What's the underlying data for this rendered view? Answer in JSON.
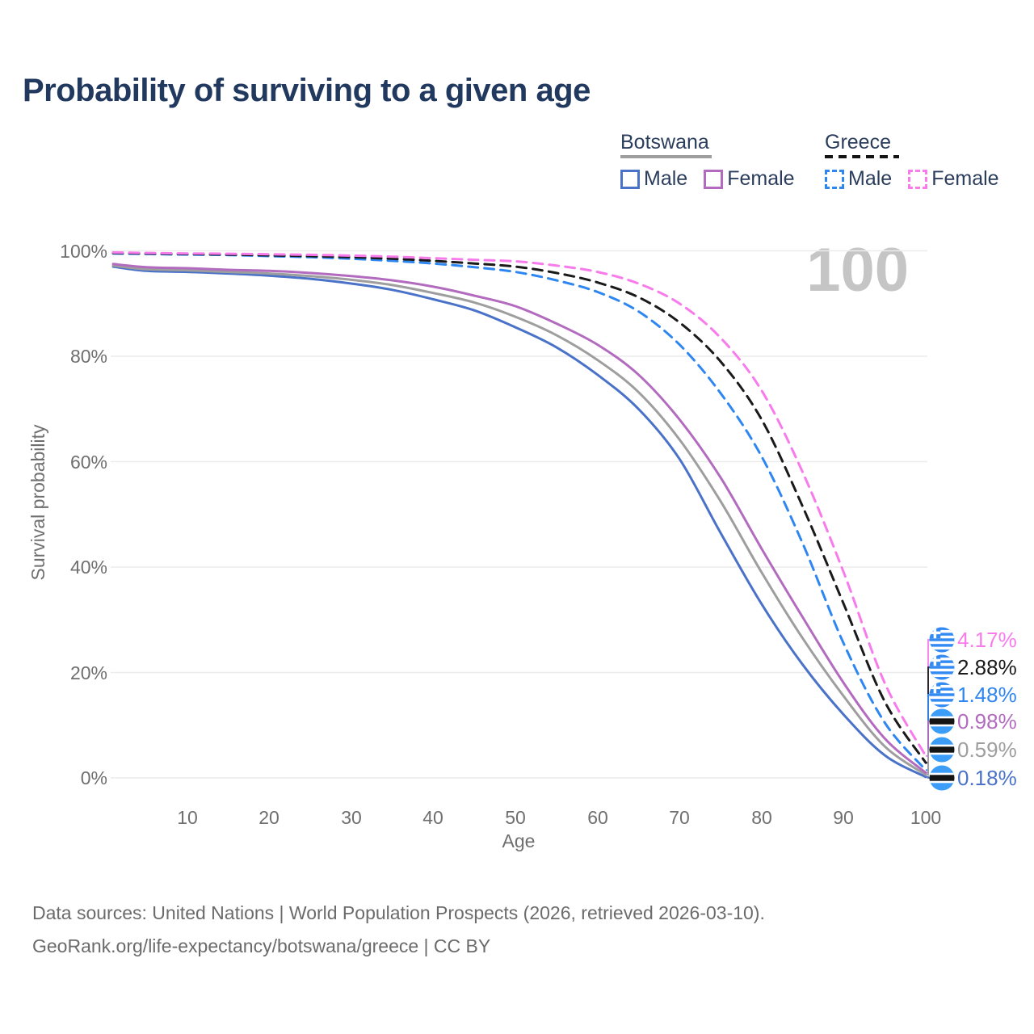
{
  "title": "Probability of surviving to a given age",
  "watermark_age": "100",
  "legend": {
    "groups": [
      {
        "id": "botswana",
        "label": "Botswana",
        "line_style": "solid",
        "line_color": "#9e9e9e",
        "underline_width": 113,
        "items": [
          {
            "id": "male",
            "label": "Male",
            "swatch_color": "#4a72c8",
            "swatch_style": "solid"
          },
          {
            "id": "female",
            "label": "Female",
            "swatch_color": "#b26bbe",
            "swatch_style": "solid"
          }
        ]
      },
      {
        "id": "greece",
        "label": "Greece",
        "line_style": "dashed",
        "line_color": "#141414",
        "underline_width": 92,
        "items": [
          {
            "id": "male",
            "label": "Male",
            "swatch_color": "#2e86f0",
            "swatch_style": "dashed"
          },
          {
            "id": "female",
            "label": "Female",
            "swatch_color": "#f87bec",
            "swatch_style": "dashed"
          }
        ]
      }
    ]
  },
  "chart_data": {
    "type": "line",
    "title": "Probability of surviving to a given age",
    "xlabel": "Age",
    "ylabel": "Survival probability",
    "xlim": [
      1,
      100
    ],
    "ylim": [
      0,
      100
    ],
    "grid": "horizontal-only",
    "legend_position": "top-right",
    "focus_age": 100,
    "x_ticks": [
      10,
      20,
      30,
      40,
      50,
      60,
      70,
      80,
      90,
      100
    ],
    "y_tick_values": [
      0,
      20,
      40,
      60,
      80,
      100
    ],
    "y_tick_labels": [
      "0%",
      "20%",
      "40%",
      "60%",
      "80%",
      "100%"
    ],
    "x": [
      1,
      5,
      10,
      15,
      20,
      25,
      30,
      35,
      40,
      45,
      50,
      55,
      60,
      65,
      70,
      75,
      80,
      85,
      90,
      95,
      100
    ],
    "series": [
      {
        "name": "Greece Female",
        "country": "Greece",
        "sex": "Female",
        "color": "#f87bec",
        "line_style": "dashed",
        "flag": "greece",
        "end_label": "4.17%",
        "end_value": 4.17,
        "values": [
          99.7,
          99.6,
          99.5,
          99.45,
          99.35,
          99.25,
          99.1,
          98.9,
          98.6,
          98.3,
          98.0,
          97.2,
          96.0,
          93.8,
          90.0,
          83.5,
          73.5,
          58.0,
          39.0,
          18.0,
          4.17
        ]
      },
      {
        "name": "Greece All",
        "country": "Greece",
        "sex": "All",
        "color": "#1a1a1a",
        "line_style": "dashed",
        "flag": "greece",
        "end_label": "2.88%",
        "end_value": 2.88,
        "values": [
          99.6,
          99.5,
          99.4,
          99.3,
          99.15,
          99.0,
          98.8,
          98.5,
          98.1,
          97.6,
          97.0,
          95.8,
          94.0,
          91.2,
          86.4,
          79.0,
          68.0,
          51.5,
          33.0,
          14.5,
          2.88
        ]
      },
      {
        "name": "Greece Male",
        "country": "Greece",
        "sex": "Male",
        "color": "#2e86f0",
        "line_style": "dashed",
        "flag": "greece",
        "end_label": "1.48%",
        "end_value": 1.48,
        "values": [
          99.5,
          99.4,
          99.3,
          99.2,
          99.0,
          98.8,
          98.5,
          98.1,
          97.6,
          96.9,
          96.0,
          94.4,
          92.2,
          88.5,
          82.2,
          73.0,
          61.0,
          44.5,
          25.5,
          10.5,
          1.48
        ]
      },
      {
        "name": "Botswana Female",
        "country": "Botswana",
        "sex": "Female",
        "color": "#b26bbe",
        "line_style": "solid",
        "flag": "botswana",
        "end_label": "0.98%",
        "end_value": 0.98,
        "values": [
          97.5,
          96.9,
          96.7,
          96.4,
          96.2,
          95.8,
          95.2,
          94.4,
          93.2,
          91.5,
          89.5,
          86.2,
          82.2,
          76.5,
          68.0,
          57.0,
          43.5,
          30.5,
          18.0,
          7.5,
          0.98
        ]
      },
      {
        "name": "Botswana All",
        "country": "Botswana",
        "sex": "All",
        "color": "#9e9e9e",
        "line_style": "solid",
        "flag": "botswana",
        "end_label": "0.59%",
        "end_value": 0.59,
        "values": [
          97.2,
          96.5,
          96.3,
          96.0,
          95.7,
          95.2,
          94.5,
          93.5,
          92.0,
          90.2,
          87.5,
          84.0,
          79.3,
          73.2,
          64.2,
          52.5,
          39.0,
          26.5,
          15.5,
          6.0,
          0.59
        ]
      },
      {
        "name": "Botswana Male",
        "country": "Botswana",
        "sex": "Male",
        "color": "#4a72c8",
        "line_style": "solid",
        "flag": "botswana",
        "end_label": "0.18%",
        "end_value": 0.18,
        "values": [
          97.0,
          96.2,
          96.0,
          95.7,
          95.3,
          94.7,
          93.8,
          92.6,
          90.8,
          88.7,
          85.5,
          81.7,
          76.5,
          70.0,
          60.5,
          46.5,
          33.0,
          21.5,
          12.0,
          4.3,
          0.18
        ]
      }
    ]
  },
  "footer": {
    "line1": "Data sources: United Nations | World Population Prospects (2026, retrieved 2026-03-10).",
    "line2": "GeoRank.org/life-expectancy/botswana/greece | CC BY"
  }
}
